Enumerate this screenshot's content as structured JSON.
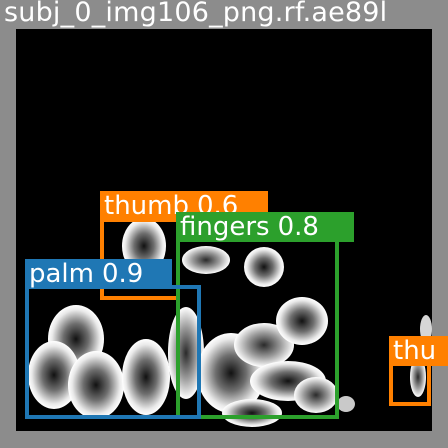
{
  "image": {
    "caption": "subj_0_img106_png.rf.ae89l",
    "colors": {
      "frame": "#8c8c8c",
      "background": "#000000"
    }
  },
  "detections": [
    {
      "id": "thumb-1",
      "class_name": "thumb",
      "score": "0.6",
      "color": "#ff8000"
    },
    {
      "id": "fingers",
      "class_name": "fingers",
      "score": "0.8",
      "color": "#2ca02c"
    },
    {
      "id": "palm",
      "class_name": "palm",
      "score": "0.9",
      "color": "#1f77b4"
    },
    {
      "id": "thumb-2",
      "class_name": "thu",
      "score": "",
      "color": "#ff8000"
    }
  ]
}
